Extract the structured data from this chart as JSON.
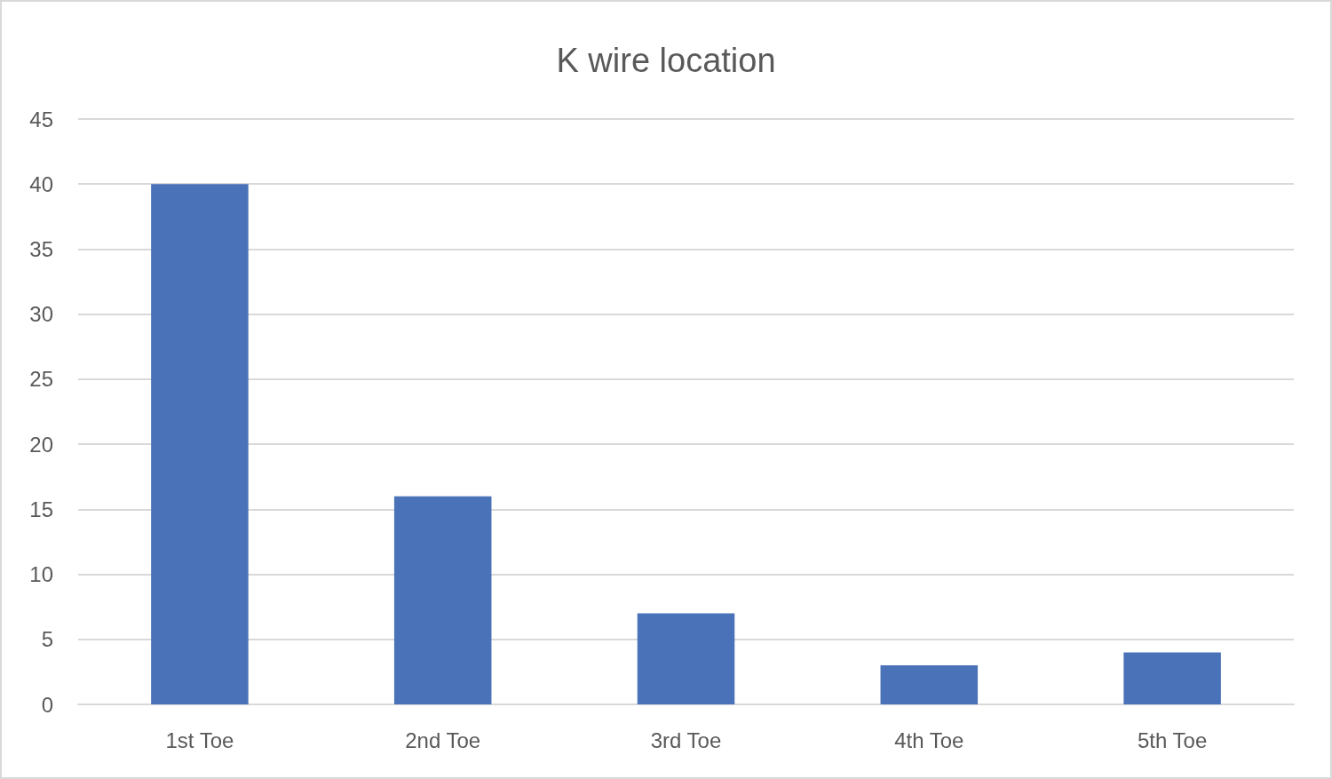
{
  "chart_data": {
    "type": "bar",
    "title": "K wire location",
    "categories": [
      "1st Toe",
      "2nd Toe",
      "3rd Toe",
      "4th Toe",
      "5th Toe"
    ],
    "values": [
      40,
      16,
      7,
      3,
      4
    ],
    "color": "#4a72b8",
    "ylim": [
      0,
      45
    ],
    "yticks": [
      0,
      5,
      10,
      15,
      20,
      25,
      30,
      35,
      40,
      45
    ],
    "grid": "y"
  }
}
